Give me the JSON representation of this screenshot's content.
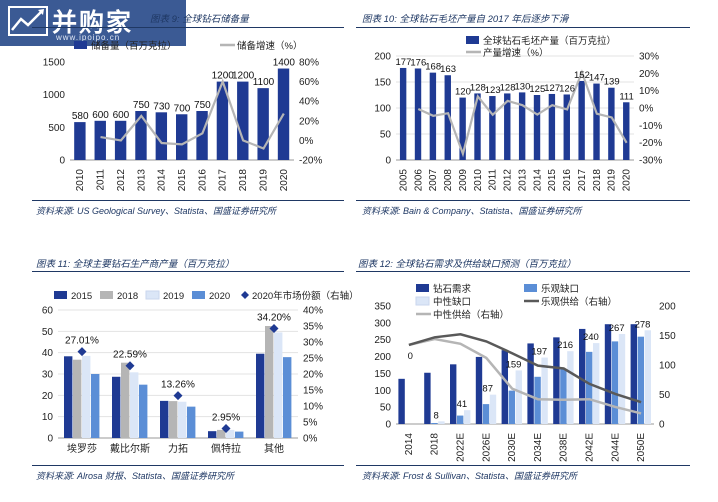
{
  "watermark": {
    "brand": "并购家",
    "url": "www.ipoipo.cn"
  },
  "panels": {
    "p9": {
      "title": "图表 9: 全球钻石储备量",
      "source": "资料来源: US Geological Survey、Statista、国盛证券研究所"
    },
    "p10": {
      "title": "图表 10: 全球钻石毛坯产量自 2017 年后逐步下滑",
      "source": "资料来源: Bain & Company、Statista、国盛证券研究所"
    },
    "p11": {
      "title": "图表 11: 全球主要钻石生产商产量（百万克拉）",
      "source": "资料来源: Alrosa 财报、Statista、国盛证券研究所"
    },
    "p12": {
      "title": "图表 12: 全球钻石需求及供给缺口预测（百万克拉）",
      "source": "资料来源: Frost & Sullivan、Statista、国盛证券研究所"
    }
  },
  "colors": {
    "navy": "#1f3a93",
    "gray": "#b5b5b5",
    "light": "#dbe6f7",
    "mid": "#5b8ed6",
    "dark": "#595959",
    "title": "#1f3864"
  },
  "chart_data": [
    {
      "type": "bar",
      "categories": [
        "2010",
        "2011",
        "2012",
        "2013",
        "2014",
        "2015",
        "2016",
        "2017",
        "2018",
        "2019",
        "2020"
      ],
      "series": [
        {
          "name": "储备量（百万克拉）",
          "type": "bar",
          "axis": "left",
          "color": "#1f3a93",
          "values": [
            580,
            600,
            600,
            750,
            730,
            700,
            750,
            1200,
            1200,
            1100,
            1400
          ]
        },
        {
          "name": "储备增速（%）",
          "type": "line",
          "axis": "right",
          "color": "#b5b5b5",
          "values": [
            null,
            3.4,
            0,
            25,
            -2.7,
            -4.1,
            7.1,
            60,
            0,
            -8.3,
            27.3
          ]
        }
      ],
      "data_labels": [
        "580",
        "600",
        "600",
        "750",
        "730",
        "700",
        "750",
        "1200",
        "1200",
        "1100",
        "1400"
      ],
      "ylim": [
        0,
        1500
      ],
      "yticks": [
        "0",
        "500",
        "1000",
        "1500"
      ],
      "y2lim": [
        -20,
        80
      ],
      "y2ticks": [
        "-20%",
        "0%",
        "20%",
        "40%",
        "60%",
        "80%"
      ]
    },
    {
      "type": "bar",
      "categories": [
        "2005",
        "2006",
        "2007",
        "2008",
        "2009",
        "2010",
        "2011",
        "2012",
        "2013",
        "2014",
        "2015",
        "2016",
        "2017",
        "2018",
        "2019",
        "2020"
      ],
      "series": [
        {
          "name": "全球钻石毛坯产量（百万克拉）",
          "type": "bar",
          "axis": "left",
          "color": "#1f3a93",
          "values": [
            177,
            176,
            168,
            163,
            120,
            128,
            123,
            128,
            130,
            125,
            127,
            126,
            152,
            147,
            139,
            111
          ]
        },
        {
          "name": "产量增速（%）",
          "type": "line",
          "axis": "right",
          "color": "#b5b5b5",
          "values": [
            null,
            -0.6,
            -4.5,
            -3,
            -26.4,
            6.7,
            -3.9,
            4.1,
            1.6,
            -3.8,
            1.6,
            -0.8,
            20.6,
            -3.3,
            -5.4,
            -20.1
          ]
        }
      ],
      "data_labels": [
        "177",
        "176",
        "168",
        "163",
        "120",
        "128",
        "123",
        "128",
        "130",
        "125",
        "127",
        "126",
        "152",
        "147",
        "139",
        "111"
      ],
      "ylim": [
        0,
        200
      ],
      "yticks": [
        "0",
        "50",
        "100",
        "150",
        "200"
      ],
      "y2lim": [
        -30,
        30
      ],
      "y2ticks": [
        "-30%",
        "-20%",
        "-10%",
        "0%",
        "10%",
        "20%",
        "30%"
      ]
    },
    {
      "type": "bar",
      "categories": [
        "埃罗莎",
        "戴比尔斯",
        "力拓",
        "佩特拉",
        "其他"
      ],
      "series": [
        {
          "name": "2015",
          "type": "bar",
          "axis": "left",
          "color": "#1f3a93",
          "values": [
            38.3,
            28.7,
            17.4,
            3.2,
            39.5
          ]
        },
        {
          "name": "2018",
          "type": "bar",
          "axis": "left",
          "color": "#b5b5b5",
          "values": [
            36.7,
            35.3,
            17.3,
            3.8,
            52.5
          ]
        },
        {
          "name": "2019",
          "type": "bar",
          "axis": "left",
          "color": "#dbe6f7",
          "values": [
            38.5,
            30.8,
            17.0,
            3.8,
            49.5
          ]
        },
        {
          "name": "2020",
          "type": "bar",
          "axis": "left",
          "color": "#5b8ed6",
          "values": [
            30.0,
            25.0,
            14.7,
            3.0,
            37.9
          ]
        },
        {
          "name": "2020年市场份额（右轴）",
          "type": "marker",
          "axis": "right",
          "color": "#1f3a93",
          "values": [
            27.01,
            22.59,
            13.26,
            2.95,
            34.2
          ]
        }
      ],
      "data_labels": [
        "27.01%",
        "22.59%",
        "13.26%",
        "2.95%",
        "34.20%"
      ],
      "ylim": [
        0,
        60
      ],
      "yticks": [
        "0",
        "10",
        "20",
        "30",
        "40",
        "50",
        "60"
      ],
      "y2lim": [
        0,
        40
      ],
      "y2ticks": [
        "0%",
        "5%",
        "10%",
        "15%",
        "20%",
        "25%",
        "30%",
        "35%",
        "40%"
      ]
    },
    {
      "type": "bar",
      "categories": [
        "2014",
        "2018",
        "2022E",
        "2026E",
        "2030E",
        "2034E",
        "2038E",
        "2042E",
        "2044E",
        "2050E"
      ],
      "series": [
        {
          "name": "钻石需求",
          "type": "bar",
          "axis": "left",
          "color": "#1f3a93",
          "values": [
            134,
            152,
            177,
            199,
            219,
            239,
            257,
            282,
            296,
            296
          ]
        },
        {
          "name": "乐观缺口",
          "type": "bar",
          "axis": "left",
          "color": "#5b8ed6",
          "values": [
            0,
            3,
            25,
            59,
            99,
            140,
            163,
            214,
            245,
            259
          ]
        },
        {
          "name": "中性缺口",
          "type": "bar",
          "axis": "left",
          "color": "#dbe6f7",
          "values": [
            0,
            8,
            41,
            87,
            159,
            197,
            216,
            240,
            267,
            278
          ]
        },
        {
          "name": "中性供给（右轴）",
          "type": "line",
          "axis": "right",
          "color": "#b5b5b5",
          "values": [
            134,
            144,
            136,
            112,
            60,
            42,
            41,
            42,
            29,
            18
          ]
        },
        {
          "name": "乐观供给（右轴）",
          "type": "line",
          "axis": "right",
          "color": "#595959",
          "values": [
            134,
            147,
            152,
            140,
            120,
            99,
            94,
            68,
            51,
            37
          ]
        }
      ],
      "data_labels": [
        "0",
        "8",
        "41",
        "87",
        "159",
        "197",
        "216",
        "240",
        "267",
        "278"
      ],
      "ylim": [
        0,
        350
      ],
      "yticks": [
        "0",
        "50",
        "100",
        "150",
        "200",
        "250",
        "300",
        "350"
      ],
      "y2lim": [
        0,
        200
      ],
      "y2ticks": [
        "0",
        "50",
        "100",
        "150",
        "200"
      ]
    }
  ]
}
